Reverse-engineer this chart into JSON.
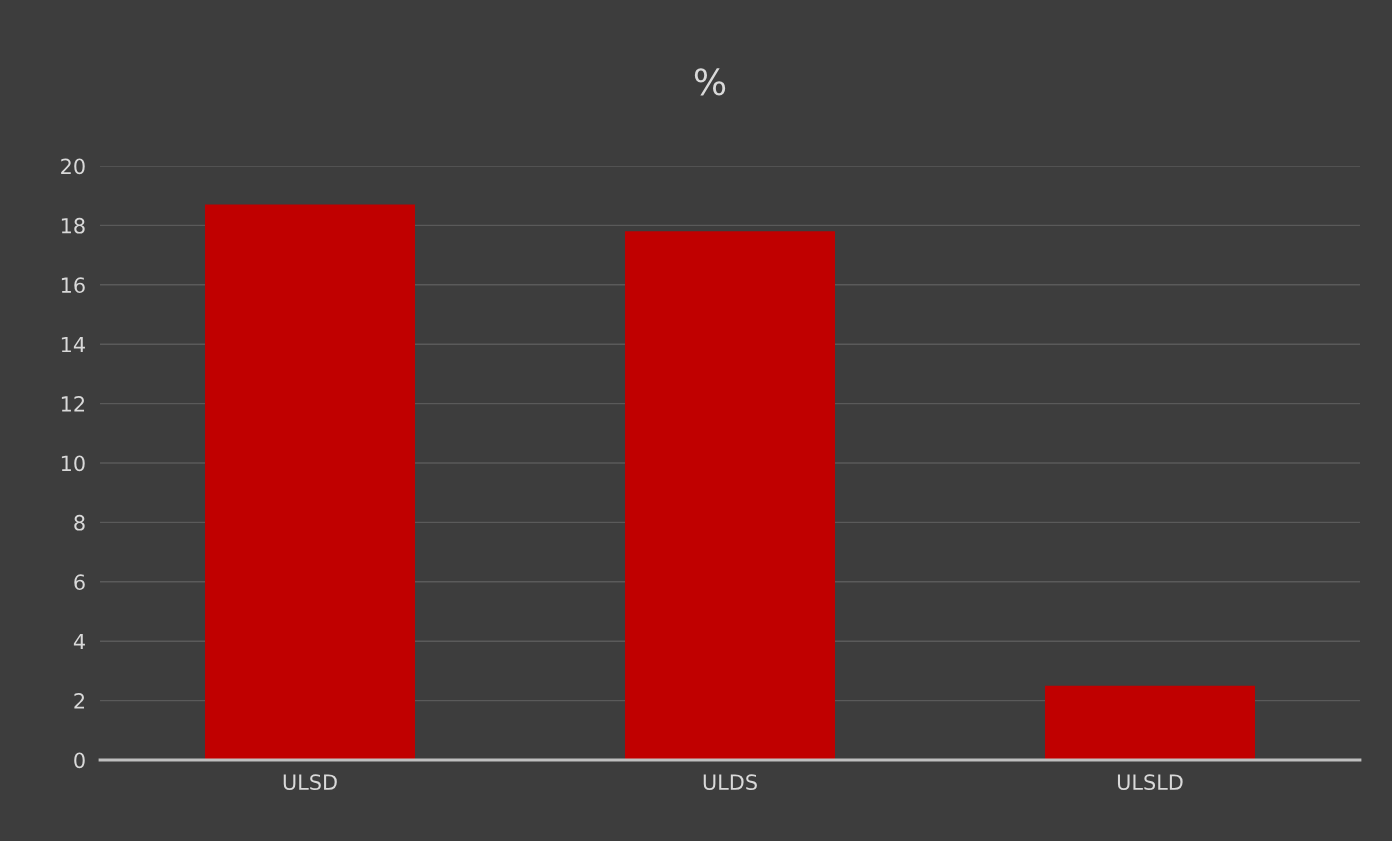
{
  "chart_data": {
    "type": "bar",
    "title": "%",
    "categories": [
      "ULSD",
      "ULDS",
      "ULSLD"
    ],
    "values": [
      18.7,
      17.8,
      2.5
    ],
    "color": "#c00000",
    "ylim": [
      0,
      20
    ],
    "yticks": [
      0,
      2,
      4,
      6,
      8,
      10,
      12,
      14,
      16,
      18,
      20
    ],
    "grid": "y",
    "legend": false
  }
}
